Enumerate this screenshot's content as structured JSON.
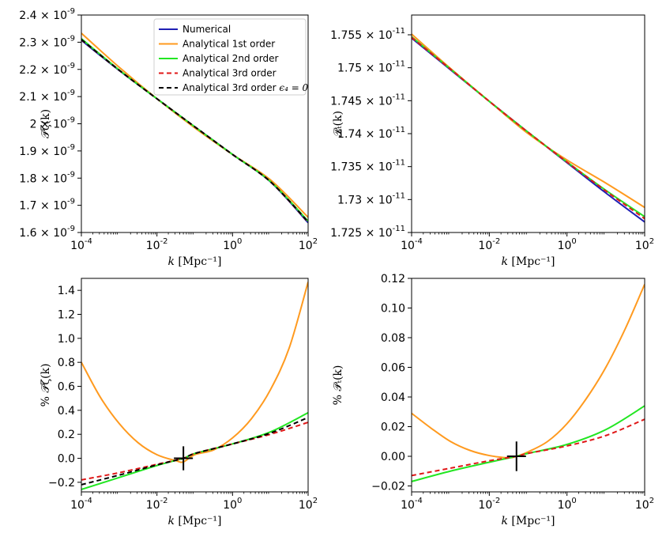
{
  "colors": {
    "numerical": "#1f1fb4",
    "first": "#ff9a1f",
    "second": "#22e622",
    "third": "#e01818",
    "third_e4": "#000000"
  },
  "legend": [
    {
      "key": "numerical",
      "label": "Numerical",
      "dash": "solid"
    },
    {
      "key": "first",
      "label": "Analytical 1st order",
      "dash": "solid"
    },
    {
      "key": "second",
      "label": "Analytical 2nd order",
      "dash": "solid"
    },
    {
      "key": "third",
      "label": "Analytical 3rd order",
      "dash": "dashed"
    },
    {
      "key": "third_e4",
      "label": "Analytical 3rd order",
      "suffix": "ϵ₄ = 0",
      "dash": "dashed"
    }
  ],
  "chart_data": [
    {
      "type": "line",
      "panel": "top-left",
      "xlabel": "k",
      "xunit": "[Mpc⁻¹]",
      "ylabel": "𝒫ζ(k)",
      "xscale": "log",
      "xlim": [
        -4,
        2
      ],
      "ylim": [
        1.6e-09,
        2.4e-09
      ],
      "xticks": [
        {
          "v": -4,
          "b": "10",
          "e": "-4"
        },
        {
          "v": -2,
          "b": "10",
          "e": "-2"
        },
        {
          "v": 0,
          "b": "10",
          "e": "0"
        },
        {
          "v": 2,
          "b": "10",
          "e": "2"
        }
      ],
      "yticks": [
        {
          "v": 1.6e-09,
          "m": "1.6",
          "e": "-9"
        },
        {
          "v": 1.7e-09,
          "m": "1.7",
          "e": "-9"
        },
        {
          "v": 1.8e-09,
          "m": "1.8",
          "e": "-9"
        },
        {
          "v": 1.9e-09,
          "m": "1.9",
          "e": "-9"
        },
        {
          "v": 2e-09,
          "m": "2",
          "e": "-9"
        },
        {
          "v": 2.1e-09,
          "m": "2.1",
          "e": "-9"
        },
        {
          "v": 2.2e-09,
          "m": "2.2",
          "e": "-9"
        },
        {
          "v": 2.3e-09,
          "m": "2.3",
          "e": "-9"
        },
        {
          "v": 2.4e-09,
          "m": "2.4",
          "e": "-9"
        }
      ],
      "legend_pos": "top-right",
      "series": [
        {
          "key": "numerical",
          "x": [
            -4,
            -3,
            -2,
            -1,
            0,
            1,
            2
          ],
          "y": [
            2.307e-09,
            2.196e-09,
            2.092e-09,
            1.989e-09,
            1.887e-09,
            1.787e-09,
            1.636e-09
          ]
        },
        {
          "key": "first",
          "x": [
            -4,
            -3,
            -2,
            -1,
            0,
            1,
            2
          ],
          "y": [
            2.333e-09,
            2.208e-09,
            2.092e-09,
            1.985e-09,
            1.887e-09,
            1.794e-09,
            1.656e-09
          ]
        },
        {
          "key": "second",
          "x": [
            -4,
            -3,
            -2,
            -1,
            0,
            1,
            2
          ],
          "y": [
            2.313e-09,
            2.198e-09,
            2.092e-09,
            1.989e-09,
            1.887e-09,
            1.788e-09,
            1.642e-09
          ]
        },
        {
          "key": "third",
          "x": [
            -4,
            -3,
            -2,
            -1,
            0,
            1,
            2
          ],
          "y": [
            2.309e-09,
            2.197e-09,
            2.092e-09,
            1.989e-09,
            1.887e-09,
            1.787e-09,
            1.638e-09
          ]
        },
        {
          "key": "third_e4",
          "x": [
            -4,
            -3,
            -2,
            -1,
            0,
            1,
            2
          ],
          "y": [
            2.31e-09,
            2.197e-09,
            2.092e-09,
            1.989e-09,
            1.887e-09,
            1.787e-09,
            1.639e-09
          ]
        }
      ]
    },
    {
      "type": "line",
      "panel": "top-right",
      "xlabel": "k",
      "xunit": "[Mpc⁻¹]",
      "ylabel": "𝒫ₜ(k)",
      "xscale": "log",
      "xlim": [
        -4,
        2
      ],
      "ylim": [
        1.725e-11,
        1.758e-11
      ],
      "xticks": [
        {
          "v": -4,
          "b": "10",
          "e": "-4"
        },
        {
          "v": -2,
          "b": "10",
          "e": "-2"
        },
        {
          "v": 0,
          "b": "10",
          "e": "0"
        },
        {
          "v": 2,
          "b": "10",
          "e": "2"
        }
      ],
      "yticks": [
        {
          "v": 1.725e-11,
          "m": "1.725",
          "e": "-11"
        },
        {
          "v": 1.73e-11,
          "m": "1.73",
          "e": "-11"
        },
        {
          "v": 1.735e-11,
          "m": "1.735",
          "e": "-11"
        },
        {
          "v": 1.74e-11,
          "m": "1.74",
          "e": "-11"
        },
        {
          "v": 1.745e-11,
          "m": "1.745",
          "e": "-11"
        },
        {
          "v": 1.75e-11,
          "m": "1.75",
          "e": "-11"
        },
        {
          "v": 1.755e-11,
          "m": "1.755",
          "e": "-11"
        }
      ],
      "series": [
        {
          "key": "numerical",
          "x": [
            -4,
            -3,
            -2,
            -1,
            0,
            1,
            2
          ],
          "y": [
            1.7545e-11,
            1.7497e-11,
            1.7449e-11,
            1.7402e-11,
            1.7356e-11,
            1.731e-11,
            1.7266e-11
          ]
        },
        {
          "key": "first",
          "x": [
            -4,
            -3,
            -2,
            -1,
            0,
            1,
            2
          ],
          "y": [
            1.7551e-11,
            1.7499e-11,
            1.7449e-11,
            1.74e-11,
            1.736e-11,
            1.7325e-11,
            1.7288e-11
          ]
        },
        {
          "key": "second",
          "x": [
            -4,
            -3,
            -2,
            -1,
            0,
            1,
            2
          ],
          "y": [
            1.7547e-11,
            1.7498e-11,
            1.7449e-11,
            1.7402e-11,
            1.7357e-11,
            1.7314e-11,
            1.7274e-11
          ]
        },
        {
          "key": "third",
          "x": [
            -4,
            -3,
            -2,
            -1,
            0,
            1,
            2
          ],
          "y": [
            1.7546e-11,
            1.7498e-11,
            1.7449e-11,
            1.7402e-11,
            1.7357e-11,
            1.7313e-11,
            1.7271e-11
          ]
        }
      ]
    },
    {
      "type": "line",
      "panel": "bottom-left",
      "xlabel": "k",
      "xunit": "[Mpc⁻¹]",
      "ylabel": "% 𝒫ζ(k)",
      "xscale": "log",
      "xlim": [
        -4,
        2
      ],
      "ylim": [
        -0.28,
        1.5
      ],
      "xticks": [
        {
          "v": -4,
          "b": "10",
          "e": "-4"
        },
        {
          "v": -2,
          "b": "10",
          "e": "-2"
        },
        {
          "v": 0,
          "b": "10",
          "e": "0"
        },
        {
          "v": 2,
          "b": "10",
          "e": "2"
        }
      ],
      "yticks": [
        {
          "v": -0.2,
          "t": "−0.2"
        },
        {
          "v": 0.0,
          "t": "0.0"
        },
        {
          "v": 0.2,
          "t": "0.2"
        },
        {
          "v": 0.4,
          "t": "0.4"
        },
        {
          "v": 0.6,
          "t": "0.6"
        },
        {
          "v": 0.8,
          "t": "0.8"
        },
        {
          "v": 1.0,
          "t": "1.0"
        },
        {
          "v": 1.2,
          "t": "1.2"
        },
        {
          "v": 1.4,
          "t": "1.4"
        }
      ],
      "marker": {
        "x": -1.3,
        "y": 0.0,
        "dy": 0.1
      },
      "series": [
        {
          "key": "first",
          "x": [
            -4,
            -3.5,
            -3,
            -2.5,
            -2,
            -1.5,
            -1.3,
            -1,
            -0.5,
            0,
            0.5,
            1,
            1.5,
            2
          ],
          "y": [
            0.8,
            0.51,
            0.29,
            0.13,
            0.03,
            -0.02,
            -0.03,
            0.03,
            0.07,
            0.17,
            0.33,
            0.57,
            0.92,
            1.47
          ]
        },
        {
          "key": "second",
          "x": [
            -4,
            -3,
            -2,
            -1.3,
            -1,
            0,
            1,
            2
          ],
          "y": [
            -0.26,
            -0.16,
            -0.06,
            0.0,
            0.04,
            0.12,
            0.22,
            0.38
          ]
        },
        {
          "key": "third",
          "x": [
            -4,
            -3,
            -2,
            -1.3,
            -1,
            0,
            1,
            2
          ],
          "y": [
            -0.18,
            -0.12,
            -0.05,
            0.0,
            0.04,
            0.12,
            0.2,
            0.3
          ]
        },
        {
          "key": "third_e4",
          "x": [
            -4,
            -3,
            -2,
            -1.3,
            -1,
            0,
            1,
            2
          ],
          "y": [
            -0.22,
            -0.14,
            -0.055,
            0.0,
            0.04,
            0.12,
            0.21,
            0.34
          ]
        }
      ]
    },
    {
      "type": "line",
      "panel": "bottom-right",
      "xlabel": "k",
      "xunit": "[Mpc⁻¹]",
      "ylabel": "% 𝒫ₜ(k)",
      "xscale": "log",
      "xlim": [
        -4,
        2
      ],
      "ylim": [
        -0.024,
        0.12
      ],
      "xticks": [
        {
          "v": -4,
          "b": "10",
          "e": "-4"
        },
        {
          "v": -2,
          "b": "10",
          "e": "-2"
        },
        {
          "v": 0,
          "b": "10",
          "e": "0"
        },
        {
          "v": 2,
          "b": "10",
          "e": "2"
        }
      ],
      "yticks": [
        {
          "v": -0.02,
          "t": "−0.02"
        },
        {
          "v": 0.0,
          "t": "0.00"
        },
        {
          "v": 0.02,
          "t": "0.02"
        },
        {
          "v": 0.04,
          "t": "0.04"
        },
        {
          "v": 0.06,
          "t": "0.06"
        },
        {
          "v": 0.08,
          "t": "0.08"
        },
        {
          "v": 0.1,
          "t": "0.10"
        },
        {
          "v": 0.12,
          "t": "0.12"
        }
      ],
      "marker": {
        "x": -1.3,
        "y": 0.0,
        "dy": 0.01
      },
      "series": [
        {
          "key": "first",
          "x": [
            -4,
            -3.5,
            -3,
            -2.5,
            -2,
            -1.5,
            -1.3,
            -1,
            -0.5,
            0,
            0.5,
            1,
            1.5,
            2
          ],
          "y": [
            0.029,
            0.019,
            0.01,
            0.004,
            0.0005,
            -0.001,
            0.0,
            0.003,
            0.01,
            0.022,
            0.039,
            0.06,
            0.086,
            0.116
          ]
        },
        {
          "key": "second",
          "x": [
            -4,
            -3,
            -2,
            -1.3,
            -1,
            0,
            1,
            2
          ],
          "y": [
            -0.017,
            -0.01,
            -0.004,
            0.0,
            0.002,
            0.008,
            0.018,
            0.034
          ]
        },
        {
          "key": "third",
          "x": [
            -4,
            -3,
            -2,
            -1.3,
            -1,
            0,
            1,
            2
          ],
          "y": [
            -0.013,
            -0.008,
            -0.003,
            0.0,
            0.002,
            0.007,
            0.014,
            0.025
          ]
        }
      ]
    }
  ]
}
